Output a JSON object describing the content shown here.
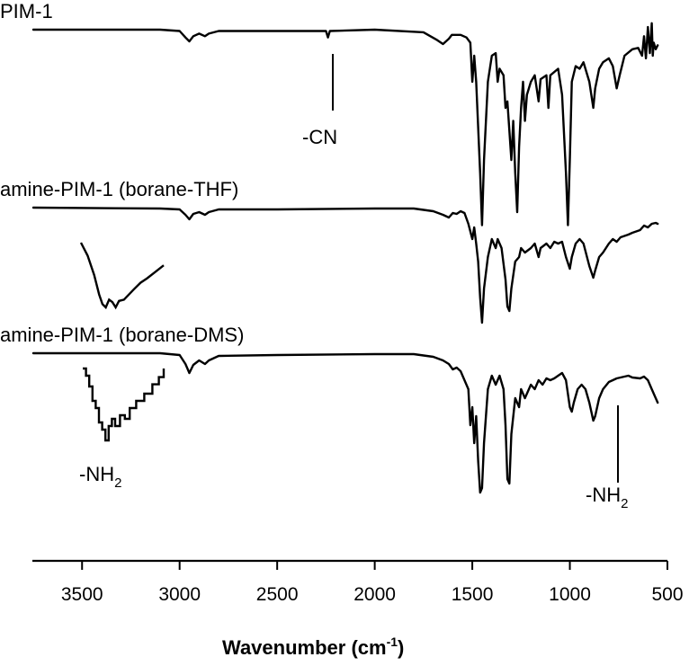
{
  "chart_data": {
    "type": "line",
    "xlabel": "Wavenumber (cm",
    "xlabel_sup": "-1",
    "xlabel_close": ")",
    "xlim": [
      3750,
      500
    ],
    "x_ticks": [
      3500,
      3000,
      2500,
      2000,
      1500,
      1000,
      500
    ],
    "y_axis_shown": false,
    "grid": false,
    "series": [
      {
        "name": "PIM-1",
        "points": [
          [
            3750,
            0
          ],
          [
            3100,
            0
          ],
          [
            3000,
            1
          ],
          [
            2970,
            6
          ],
          [
            2950,
            9
          ],
          [
            2930,
            5
          ],
          [
            2900,
            3
          ],
          [
            2870,
            5
          ],
          [
            2850,
            3
          ],
          [
            2800,
            1
          ],
          [
            2500,
            1
          ],
          [
            2250,
            1
          ],
          [
            2240,
            6
          ],
          [
            2230,
            1
          ],
          [
            2000,
            0
          ],
          [
            1750,
            2
          ],
          [
            1680,
            8
          ],
          [
            1650,
            11
          ],
          [
            1620,
            7
          ],
          [
            1605,
            4
          ],
          [
            1560,
            4
          ],
          [
            1530,
            6
          ],
          [
            1510,
            10
          ],
          [
            1500,
            40
          ],
          [
            1490,
            20
          ],
          [
            1480,
            40
          ],
          [
            1460,
            110
          ],
          [
            1450,
            150
          ],
          [
            1440,
            100
          ],
          [
            1420,
            40
          ],
          [
            1400,
            20
          ],
          [
            1380,
            18
          ],
          [
            1370,
            40
          ],
          [
            1360,
            30
          ],
          [
            1340,
            35
          ],
          [
            1330,
            60
          ],
          [
            1320,
            55
          ],
          [
            1300,
            100
          ],
          [
            1290,
            70
          ],
          [
            1280,
            110
          ],
          [
            1270,
            140
          ],
          [
            1260,
            90
          ],
          [
            1250,
            60
          ],
          [
            1240,
            40
          ],
          [
            1230,
            70
          ],
          [
            1220,
            50
          ],
          [
            1200,
            40
          ],
          [
            1180,
            35
          ],
          [
            1160,
            55
          ],
          [
            1150,
            38
          ],
          [
            1120,
            35
          ],
          [
            1110,
            60
          ],
          [
            1100,
            35
          ],
          [
            1060,
            30
          ],
          [
            1040,
            50
          ],
          [
            1020,
            110
          ],
          [
            1010,
            150
          ],
          [
            1000,
            100
          ],
          [
            990,
            40
          ],
          [
            970,
            28
          ],
          [
            950,
            30
          ],
          [
            930,
            25
          ],
          [
            900,
            40
          ],
          [
            880,
            60
          ],
          [
            870,
            45
          ],
          [
            850,
            30
          ],
          [
            830,
            25
          ],
          [
            800,
            22
          ],
          [
            780,
            28
          ],
          [
            760,
            45
          ],
          [
            745,
            35
          ],
          [
            720,
            20
          ],
          [
            680,
            15
          ],
          [
            650,
            14
          ],
          [
            630,
            20
          ],
          [
            620,
            5
          ],
          [
            610,
            22
          ],
          [
            600,
            -2
          ],
          [
            590,
            18
          ],
          [
            580,
            -5
          ],
          [
            575,
            20
          ],
          [
            570,
            10
          ],
          [
            560,
            15
          ],
          [
            550,
            12
          ]
        ]
      },
      {
        "name": "amine-PIM-1 (borane-THF)",
        "points": [
          [
            3750,
            0
          ],
          [
            3100,
            1
          ],
          [
            3000,
            2
          ],
          [
            2970,
            8
          ],
          [
            2950,
            13
          ],
          [
            2930,
            7
          ],
          [
            2900,
            5
          ],
          [
            2870,
            8
          ],
          [
            2850,
            5
          ],
          [
            2800,
            2
          ],
          [
            2500,
            2
          ],
          [
            2000,
            1
          ],
          [
            1800,
            1
          ],
          [
            1700,
            4
          ],
          [
            1650,
            8
          ],
          [
            1620,
            11
          ],
          [
            1600,
            6
          ],
          [
            1580,
            7
          ],
          [
            1560,
            4
          ],
          [
            1540,
            6
          ],
          [
            1520,
            18
          ],
          [
            1500,
            35
          ],
          [
            1490,
            22
          ],
          [
            1480,
            40
          ],
          [
            1470,
            60
          ],
          [
            1460,
            100
          ],
          [
            1450,
            128
          ],
          [
            1440,
            90
          ],
          [
            1420,
            55
          ],
          [
            1400,
            35
          ],
          [
            1380,
            45
          ],
          [
            1370,
            35
          ],
          [
            1350,
            45
          ],
          [
            1330,
            80
          ],
          [
            1320,
            110
          ],
          [
            1310,
            115
          ],
          [
            1300,
            90
          ],
          [
            1280,
            60
          ],
          [
            1260,
            55
          ],
          [
            1250,
            45
          ],
          [
            1230,
            50
          ],
          [
            1200,
            45
          ],
          [
            1180,
            40
          ],
          [
            1160,
            55
          ],
          [
            1150,
            45
          ],
          [
            1120,
            40
          ],
          [
            1100,
            45
          ],
          [
            1080,
            38
          ],
          [
            1060,
            40
          ],
          [
            1040,
            38
          ],
          [
            1020,
            55
          ],
          [
            1000,
            68
          ],
          [
            990,
            55
          ],
          [
            970,
            40
          ],
          [
            950,
            35
          ],
          [
            930,
            40
          ],
          [
            900,
            65
          ],
          [
            880,
            78
          ],
          [
            870,
            70
          ],
          [
            850,
            55
          ],
          [
            830,
            50
          ],
          [
            800,
            40
          ],
          [
            780,
            35
          ],
          [
            760,
            38
          ],
          [
            740,
            33
          ],
          [
            700,
            30
          ],
          [
            680,
            28
          ],
          [
            640,
            25
          ],
          [
            620,
            20
          ],
          [
            600,
            22
          ],
          [
            580,
            18
          ],
          [
            560,
            17
          ],
          [
            550,
            18
          ]
        ]
      },
      {
        "name": "amine-PIM-1 (borane-DMS)",
        "points": [
          [
            3750,
            0
          ],
          [
            3100,
            0
          ],
          [
            3000,
            2
          ],
          [
            2970,
            12
          ],
          [
            2950,
            22
          ],
          [
            2930,
            13
          ],
          [
            2900,
            8
          ],
          [
            2870,
            12
          ],
          [
            2850,
            8
          ],
          [
            2800,
            3
          ],
          [
            2500,
            2
          ],
          [
            2000,
            1
          ],
          [
            1800,
            1
          ],
          [
            1700,
            4
          ],
          [
            1650,
            8
          ],
          [
            1620,
            12
          ],
          [
            1600,
            18
          ],
          [
            1580,
            16
          ],
          [
            1560,
            20
          ],
          [
            1540,
            30
          ],
          [
            1520,
            40
          ],
          [
            1510,
            80
          ],
          [
            1500,
            60
          ],
          [
            1490,
            100
          ],
          [
            1480,
            70
          ],
          [
            1470,
            120
          ],
          [
            1460,
            155
          ],
          [
            1450,
            150
          ],
          [
            1440,
            100
          ],
          [
            1420,
            40
          ],
          [
            1400,
            25
          ],
          [
            1380,
            35
          ],
          [
            1360,
            25
          ],
          [
            1340,
            40
          ],
          [
            1330,
            80
          ],
          [
            1320,
            140
          ],
          [
            1310,
            145
          ],
          [
            1300,
            90
          ],
          [
            1280,
            50
          ],
          [
            1260,
            60
          ],
          [
            1250,
            40
          ],
          [
            1230,
            50
          ],
          [
            1200,
            35
          ],
          [
            1180,
            40
          ],
          [
            1160,
            30
          ],
          [
            1140,
            35
          ],
          [
            1120,
            28
          ],
          [
            1100,
            30
          ],
          [
            1080,
            28
          ],
          [
            1060,
            25
          ],
          [
            1040,
            22
          ],
          [
            1020,
            30
          ],
          [
            1000,
            60
          ],
          [
            990,
            65
          ],
          [
            980,
            55
          ],
          [
            960,
            40
          ],
          [
            940,
            35
          ],
          [
            920,
            40
          ],
          [
            900,
            55
          ],
          [
            880,
            75
          ],
          [
            870,
            70
          ],
          [
            850,
            50
          ],
          [
            830,
            40
          ],
          [
            800,
            32
          ],
          [
            780,
            30
          ],
          [
            760,
            28
          ],
          [
            740,
            27
          ],
          [
            700,
            25
          ],
          [
            680,
            27
          ],
          [
            640,
            28
          ],
          [
            620,
            26
          ],
          [
            600,
            30
          ],
          [
            580,
            40
          ],
          [
            560,
            50
          ],
          [
            550,
            55
          ]
        ]
      }
    ],
    "inset_borane_THF": [
      [
        0,
        0
      ],
      [
        0.08,
        0.2
      ],
      [
        0.16,
        0.5
      ],
      [
        0.22,
        0.8
      ],
      [
        0.26,
        0.95
      ],
      [
        0.3,
        1.0
      ],
      [
        0.34,
        0.88
      ],
      [
        0.38,
        0.92
      ],
      [
        0.42,
        1.0
      ],
      [
        0.46,
        0.9
      ],
      [
        0.52,
        0.88
      ],
      [
        0.58,
        0.8
      ],
      [
        0.64,
        0.72
      ],
      [
        0.72,
        0.62
      ],
      [
        0.8,
        0.55
      ],
      [
        0.9,
        0.45
      ],
      [
        1.0,
        0.35
      ]
    ],
    "inset_borane_DMS": [
      [
        0,
        0
      ],
      [
        0.04,
        0
      ],
      [
        0.04,
        0.1
      ],
      [
        0.08,
        0.1
      ],
      [
        0.08,
        0.25
      ],
      [
        0.12,
        0.25
      ],
      [
        0.12,
        0.45
      ],
      [
        0.16,
        0.45
      ],
      [
        0.16,
        0.55
      ],
      [
        0.2,
        0.55
      ],
      [
        0.2,
        0.75
      ],
      [
        0.24,
        0.75
      ],
      [
        0.24,
        0.85
      ],
      [
        0.28,
        0.85
      ],
      [
        0.28,
        1.0
      ],
      [
        0.32,
        1.0
      ],
      [
        0.32,
        0.8
      ],
      [
        0.36,
        0.8
      ],
      [
        0.36,
        0.7
      ],
      [
        0.4,
        0.7
      ],
      [
        0.4,
        0.8
      ],
      [
        0.46,
        0.8
      ],
      [
        0.46,
        0.65
      ],
      [
        0.52,
        0.65
      ],
      [
        0.52,
        0.7
      ],
      [
        0.58,
        0.7
      ],
      [
        0.58,
        0.55
      ],
      [
        0.66,
        0.55
      ],
      [
        0.66,
        0.45
      ],
      [
        0.76,
        0.45
      ],
      [
        0.76,
        0.35
      ],
      [
        0.86,
        0.35
      ],
      [
        0.86,
        0.22
      ],
      [
        0.94,
        0.22
      ],
      [
        0.94,
        0.12
      ],
      [
        1.0,
        0.12
      ],
      [
        1.0,
        0
      ]
    ],
    "annotations": [
      {
        "text": "-CN",
        "x": 2240,
        "series": "PIM-1"
      },
      {
        "text": "-NH",
        "sub": "2",
        "near": "inset_borane_DMS"
      },
      {
        "text": "-NH",
        "sub": "2",
        "x": 785,
        "series": "amine-PIM-1 (borane-DMS)"
      }
    ]
  }
}
